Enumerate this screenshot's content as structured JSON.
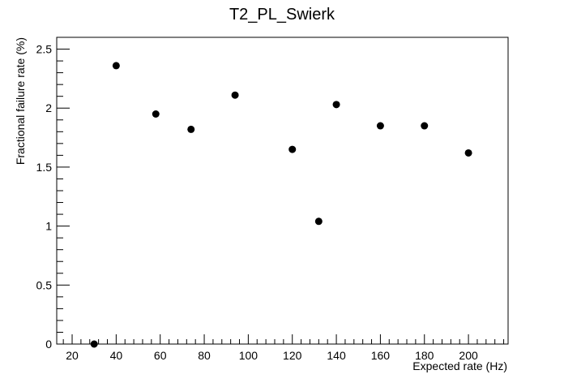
{
  "chart_data": {
    "type": "scatter",
    "title": "T2_PL_Swierk",
    "xlabel": "Expected rate (Hz)",
    "ylabel": "Fractional failure rate (%)",
    "xlim": [
      13,
      218
    ],
    "ylim": [
      0,
      2.6
    ],
    "x_ticks": [
      20,
      40,
      60,
      80,
      100,
      120,
      140,
      160,
      180,
      200
    ],
    "x_tick_labels": [
      "20",
      "40",
      "60",
      "80",
      "100",
      "120",
      "140",
      "160",
      "180",
      "200"
    ],
    "y_ticks": [
      0,
      0.5,
      1,
      1.5,
      2,
      2.5
    ],
    "y_tick_labels": [
      "0",
      "0.5",
      "1",
      "1.5",
      "2",
      "2.5"
    ],
    "grid": false,
    "marker_color": "#000000",
    "series": [
      {
        "points": [
          {
            "x": 30,
            "y": 0.0
          },
          {
            "x": 40,
            "y": 2.36
          },
          {
            "x": 58,
            "y": 1.95
          },
          {
            "x": 74,
            "y": 1.82
          },
          {
            "x": 94,
            "y": 2.11
          },
          {
            "x": 120,
            "y": 1.65
          },
          {
            "x": 132,
            "y": 1.04
          },
          {
            "x": 140,
            "y": 2.03
          },
          {
            "x": 160,
            "y": 1.85
          },
          {
            "x": 180,
            "y": 1.85
          },
          {
            "x": 200,
            "y": 1.62
          }
        ]
      }
    ]
  }
}
